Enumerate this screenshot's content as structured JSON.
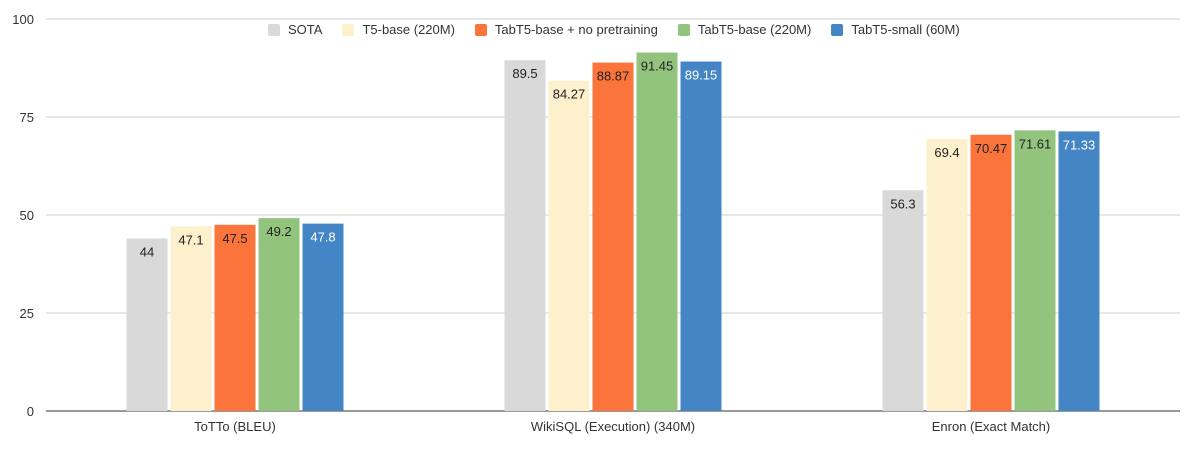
{
  "chart_data": {
    "type": "bar",
    "title": "",
    "xlabel": "",
    "ylabel": "",
    "ylim": [
      0,
      100
    ],
    "yticks": [
      "0",
      "25",
      "50",
      "75",
      "100"
    ],
    "categories": [
      "ToTTo (BLEU)",
      "WikiSQL (Execution) (340M)",
      "Enron (Exact Match)"
    ],
    "series": [
      {
        "name": "SOTA",
        "color": "#d9d9d9",
        "label_color": "#222222",
        "values": [
          44,
          89.5,
          56.3
        ],
        "labels": [
          "44",
          "89.5",
          "56.3"
        ]
      },
      {
        "name": "T5-base (220M)",
        "color": "#fdf0cc",
        "label_color": "#222222",
        "values": [
          47.1,
          84.27,
          69.4
        ],
        "labels": [
          "47.1",
          "84.27",
          "69.4"
        ]
      },
      {
        "name": "TabT5-base + no pretraining",
        "color": "#fa743b",
        "label_color": "#222222",
        "values": [
          47.5,
          88.87,
          70.47
        ],
        "labels": [
          "47.5",
          "88.87",
          "70.47"
        ]
      },
      {
        "name": "TabT5-base (220M)",
        "color": "#93c47d",
        "label_color": "#222222",
        "values": [
          49.2,
          91.45,
          71.61
        ],
        "labels": [
          "49.2",
          "91.45",
          "71.61"
        ]
      },
      {
        "name": "TabT5-small (60M)",
        "color": "#4486c5",
        "label_color": "#ffffff",
        "values": [
          47.8,
          89.15,
          71.33
        ],
        "labels": [
          "47.8",
          "89.15",
          "71.33"
        ]
      }
    ],
    "grid": true,
    "legend_position": "top"
  }
}
